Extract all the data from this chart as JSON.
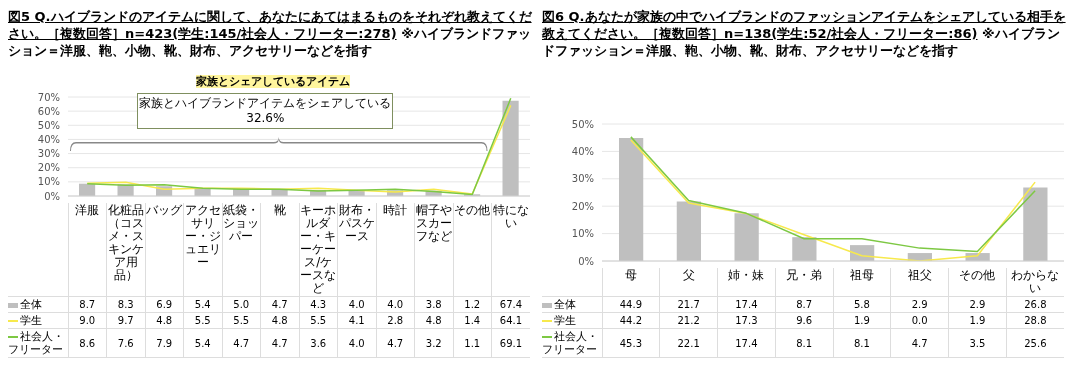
{
  "chart_data": [
    {
      "type": "bar",
      "title": "図5 Q.ハイブランドのアイテムに関して、あなたにあてはまるものをそれぞれ教えてください。［複数回答］n=423(学生:145/社会人・フリーター:278)",
      "subtitle": "※ハイブランドファッション＝洋服、鞄、小物、靴、財布、アクセサリーなどを指す",
      "xlabel": "家族とシェアしているアイテム",
      "annotations": [
        "家族とハイブランドアイテムをシェアしている\n32.6%"
      ],
      "categories": [
        "洋服",
        "化粧品（コスメ・スキンケア用品）",
        "バッグ",
        "アクセサリー・ジュエリー",
        "紙袋・ショッパー",
        "靴",
        "キーホルダー・キーケース/ケースなど",
        "財布・パスケース",
        "時計",
        "帽子やスカーフなど",
        "その他",
        "特にない"
      ],
      "series": [
        {
          "name": "全体",
          "color": "#bfbfbf",
          "values": [
            8.7,
            8.3,
            6.9,
            5.4,
            5.0,
            4.7,
            4.3,
            4.0,
            4.0,
            3.8,
            1.2,
            67.4
          ],
          "value_labels": [
            "8.7",
            "8.3",
            "6.9",
            "5.4",
            "5.0",
            "4.7",
            "4.3",
            "4.0",
            "4.0",
            "3.8",
            "1.2",
            "67.4"
          ]
        },
        {
          "name": "学生",
          "type": "line",
          "color": "#f7e94c",
          "values": [
            9.0,
            9.7,
            4.8,
            5.5,
            5.5,
            4.8,
            5.5,
            4.1,
            2.8,
            4.8,
            1.4,
            64.1
          ],
          "value_labels": [
            "9.0",
            "9.7",
            "4.8",
            "5.5",
            "5.5",
            "4.8",
            "5.5",
            "4.1",
            "2.8",
            "4.8",
            "1.4",
            "64.1"
          ]
        },
        {
          "name": "社会人・フリーター",
          "type": "line",
          "color": "#7dc843",
          "values": [
            8.6,
            7.6,
            7.9,
            5.4,
            4.7,
            4.7,
            3.6,
            4.0,
            4.7,
            3.2,
            1.1,
            69.1
          ],
          "value_labels": [
            "8.6",
            "7.6",
            "7.9",
            "5.4",
            "4.7",
            "4.7",
            "3.6",
            "4.0",
            "4.7",
            "3.2",
            "1.1",
            "69.1"
          ]
        }
      ],
      "ylim": [
        0,
        70
      ],
      "yticks": [
        {
          "value": 0,
          "label": "0%"
        },
        {
          "value": 10,
          "label": "10%"
        },
        {
          "value": 20,
          "label": "20%"
        },
        {
          "value": 30,
          "label": "30%"
        },
        {
          "value": 40,
          "label": "40%"
        },
        {
          "value": 50,
          "label": "50%"
        },
        {
          "value": 60,
          "label": "60%"
        },
        {
          "value": 70,
          "label": "70%"
        }
      ],
      "grid": "y",
      "legend": "bottom",
      "marker": "none"
    },
    {
      "type": "bar",
      "title": "図6 Q.あなたが家族の中でハイブランドのファッションアイテムをシェアしている相手を教えてください。［複数回答］n=138(学生:52/社会人・フリーター:86)",
      "subtitle": "※ハイブランドファッション＝洋服、鞄、小物、靴、財布、アクセサリーなどを指す",
      "categories": [
        "母",
        "父",
        "姉・妹",
        "兄・弟",
        "祖母",
        "祖父",
        "その他",
        "わからない"
      ],
      "series": [
        {
          "name": "全体",
          "color": "#bfbfbf",
          "values": [
            44.9,
            21.7,
            17.4,
            8.7,
            5.8,
            2.9,
            2.9,
            26.8
          ],
          "value_labels": [
            "44.9",
            "21.7",
            "17.4",
            "8.7",
            "5.8",
            "2.9",
            "2.9",
            "26.8"
          ]
        },
        {
          "name": "学生",
          "type": "line",
          "color": "#f7e94c",
          "values": [
            44.2,
            21.2,
            17.3,
            9.6,
            1.9,
            0.0,
            1.9,
            28.8
          ],
          "value_labels": [
            "44.2",
            "21.2",
            "17.3",
            "9.6",
            "1.9",
            "0.0",
            "1.9",
            "28.8"
          ]
        },
        {
          "name": "社会人・フリーター",
          "type": "line",
          "color": "#7dc843",
          "values": [
            45.3,
            22.1,
            17.4,
            8.1,
            8.1,
            4.7,
            3.5,
            25.6
          ],
          "value_labels": [
            "45.3",
            "22.1",
            "17.4",
            "8.1",
            "8.1",
            "4.7",
            "3.5",
            "25.6"
          ]
        }
      ],
      "ylim": [
        0,
        50
      ],
      "yticks": [
        {
          "value": 0,
          "label": "0%"
        },
        {
          "value": 10,
          "label": "10%"
        },
        {
          "value": 20,
          "label": "20%"
        },
        {
          "value": 30,
          "label": "30%"
        },
        {
          "value": 40,
          "label": "40%"
        },
        {
          "value": 50,
          "label": "50%"
        }
      ],
      "grid": "y",
      "legend": "bottom",
      "marker": "none"
    }
  ]
}
